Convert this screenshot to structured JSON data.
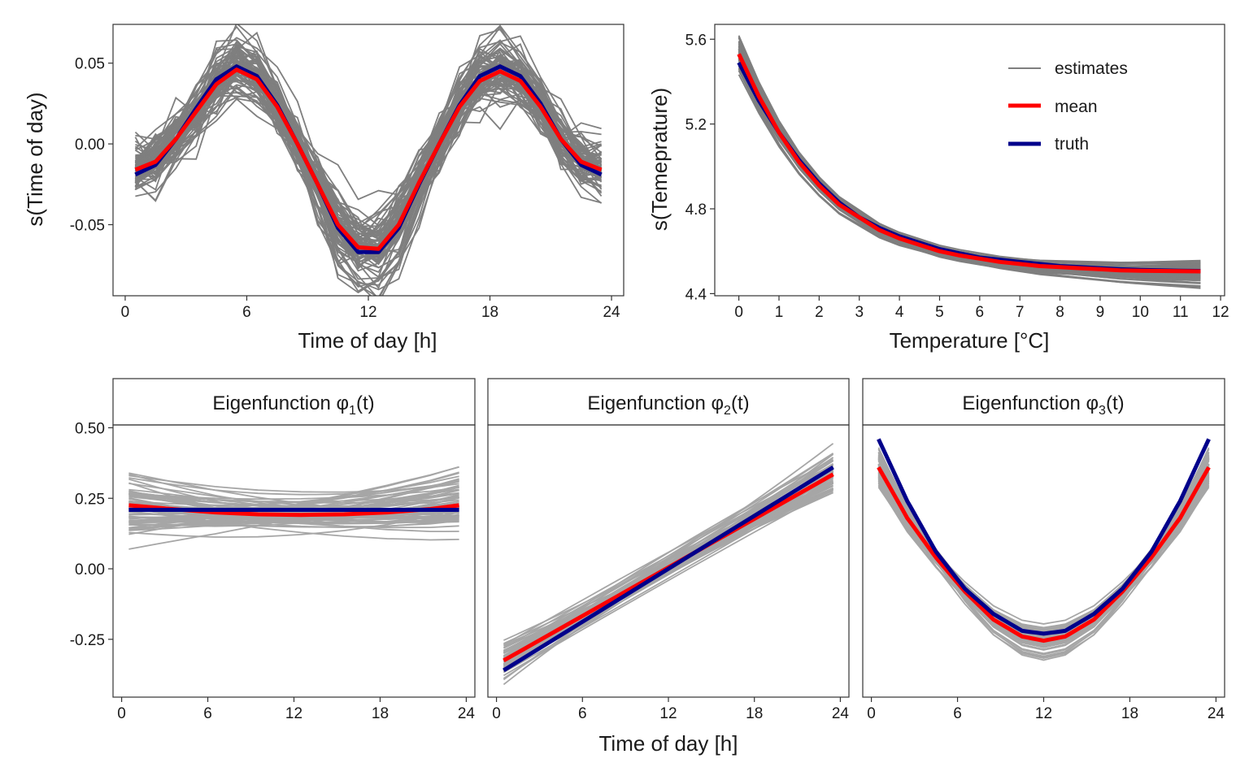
{
  "colors": {
    "estimates": "#7f7f7f",
    "estimates_light": "#a6a6a6",
    "mean": "#ff0000",
    "truth": "#00008b",
    "frame": "#333333",
    "strip_bg": "#ffffff"
  },
  "legend": {
    "items": [
      {
        "label": "estimates",
        "color": "#7f7f7f"
      },
      {
        "label": "mean",
        "color": "#ff0000"
      },
      {
        "label": "truth",
        "color": "#00008b"
      }
    ],
    "position": "top-right of temperature panel"
  },
  "shared_xlabel": "Time of day [h]",
  "chart_data": [
    {
      "id": "time",
      "type": "line",
      "title": "",
      "xlabel": "Time of day [h]",
      "ylabel": "s(Time of day)",
      "xlim": [
        -0.6,
        24.6
      ],
      "ylim": [
        -0.094,
        0.074
      ],
      "xticks": [
        0,
        6,
        12,
        18,
        24
      ],
      "xtick_labels": [
        "0",
        "6",
        "12",
        "18",
        "24"
      ],
      "yticks": [
        -0.05,
        0.0,
        0.05
      ],
      "ytick_labels": [
        "-0.05",
        "0.00",
        "0.05"
      ],
      "x": [
        0.5,
        1.5,
        2.5,
        3.5,
        4.5,
        5.5,
        6.5,
        7.5,
        8.5,
        9.5,
        10.5,
        11.5,
        12.5,
        13.5,
        14.5,
        15.5,
        16.5,
        17.5,
        18.5,
        19.5,
        20.5,
        21.5,
        22.5,
        23.5
      ],
      "series": [
        {
          "name": "truth",
          "values": [
            -0.019,
            -0.013,
            0.003,
            0.022,
            0.04,
            0.048,
            0.042,
            0.024,
            0.0,
            -0.025,
            -0.052,
            -0.067,
            -0.067,
            -0.052,
            -0.025,
            0.0,
            0.024,
            0.042,
            0.048,
            0.042,
            0.025,
            0.003,
            -0.013,
            -0.019
          ]
        },
        {
          "name": "mean",
          "values": [
            -0.016,
            -0.011,
            0.003,
            0.02,
            0.037,
            0.046,
            0.04,
            0.023,
            0.0,
            -0.025,
            -0.05,
            -0.064,
            -0.065,
            -0.05,
            -0.024,
            0.0,
            0.023,
            0.039,
            0.045,
            0.039,
            0.023,
            0.003,
            -0.011,
            -0.016
          ]
        }
      ],
      "estimates_count": 80
    },
    {
      "id": "temperature",
      "type": "line",
      "title": "",
      "xlabel": "Temperature [°C]",
      "ylabel": "s(Temeprature)",
      "xlim": [
        -0.6,
        12.1
      ],
      "ylim": [
        4.39,
        5.67
      ],
      "xticks": [
        0,
        1,
        2,
        3,
        4,
        5,
        6,
        7,
        8,
        9,
        10,
        11,
        12
      ],
      "xtick_labels": [
        "0",
        "1",
        "2",
        "3",
        "4",
        "5",
        "6",
        "7",
        "8",
        "9",
        "10",
        "11",
        "12"
      ],
      "yticks": [
        4.4,
        4.8,
        5.2,
        5.6
      ],
      "ytick_labels": [
        "4.4",
        "4.8",
        "5.2",
        "5.6"
      ],
      "x": [
        0,
        0.5,
        1,
        1.5,
        2,
        2.5,
        3,
        3.5,
        4,
        4.5,
        5,
        5.5,
        6,
        6.5,
        7,
        7.5,
        8,
        8.5,
        9,
        9.5,
        10,
        10.5,
        11,
        11.5
      ],
      "series": [
        {
          "name": "truth",
          "values": [
            5.49,
            5.31,
            5.16,
            5.03,
            4.92,
            4.83,
            4.76,
            4.71,
            4.67,
            4.64,
            4.61,
            4.59,
            4.57,
            4.56,
            4.55,
            4.54,
            4.53,
            4.525,
            4.52,
            4.515,
            4.512,
            4.51,
            4.508,
            4.507
          ]
        },
        {
          "name": "mean",
          "values": [
            5.53,
            5.33,
            5.16,
            5.02,
            4.91,
            4.82,
            4.76,
            4.7,
            4.66,
            4.63,
            4.6,
            4.58,
            4.565,
            4.55,
            4.54,
            4.53,
            4.525,
            4.52,
            4.515,
            4.51,
            4.508,
            4.507,
            4.506,
            4.505
          ]
        }
      ],
      "estimates_count": 80
    },
    {
      "id": "eig1",
      "type": "line",
      "title": "Eigenfunction φ1(t)",
      "strip_parts": {
        "prefix": "Eigenfunction φ",
        "sub": "1",
        "suffix": "(t)"
      },
      "xlabel": "",
      "ylabel": "",
      "xlim": [
        -0.6,
        24.6
      ],
      "ylim": [
        -0.455,
        0.51
      ],
      "xticks": [
        0,
        6,
        12,
        18,
        24
      ],
      "xtick_labels": [
        "0",
        "6",
        "12",
        "18",
        "24"
      ],
      "yticks": [
        -0.25,
        0.0,
        0.25,
        0.5
      ],
      "ytick_labels": [
        "-0.25",
        "0.00",
        "0.25",
        "0.50"
      ],
      "x": [
        0.5,
        3.5,
        6.5,
        9.5,
        12.5,
        15.5,
        18.5,
        21.5,
        23.5
      ],
      "series": [
        {
          "name": "truth",
          "values": [
            0.209,
            0.209,
            0.209,
            0.209,
            0.209,
            0.209,
            0.209,
            0.209,
            0.209
          ]
        },
        {
          "name": "mean",
          "values": [
            0.225,
            0.212,
            0.2,
            0.193,
            0.191,
            0.193,
            0.2,
            0.212,
            0.225
          ]
        }
      ],
      "estimates_count": 70
    },
    {
      "id": "eig2",
      "type": "line",
      "title": "Eigenfunction φ2(t)",
      "strip_parts": {
        "prefix": "Eigenfunction φ",
        "sub": "2",
        "suffix": "(t)"
      },
      "xlabel": "Time of day [h]",
      "ylabel": "",
      "xlim": [
        -0.6,
        24.6
      ],
      "ylim": [
        -0.455,
        0.51
      ],
      "xticks": [
        0,
        6,
        12,
        18,
        24
      ],
      "xtick_labels": [
        "0",
        "6",
        "12",
        "18",
        "24"
      ],
      "yticks": [
        -0.25,
        0.0,
        0.25,
        0.5
      ],
      "ytick_labels": [
        "-0.25",
        "0.00",
        "0.25",
        "0.50"
      ],
      "x": [
        0.5,
        23.5
      ],
      "series": [
        {
          "name": "truth",
          "values": [
            -0.36,
            0.36
          ]
        },
        {
          "name": "mean",
          "values": [
            -0.325,
            0.335
          ]
        }
      ],
      "estimates_count": 70
    },
    {
      "id": "eig3",
      "type": "line",
      "title": "Eigenfunction φ3(t)",
      "strip_parts": {
        "prefix": "Eigenfunction φ",
        "sub": "3",
        "suffix": "(t)"
      },
      "xlabel": "",
      "ylabel": "",
      "xlim": [
        -0.6,
        24.6
      ],
      "ylim": [
        -0.455,
        0.51
      ],
      "xticks": [
        0,
        6,
        12,
        18,
        24
      ],
      "xtick_labels": [
        "0",
        "6",
        "12",
        "18",
        "24"
      ],
      "yticks": [
        -0.25,
        0.0,
        0.25,
        0.5
      ],
      "ytick_labels": [
        "-0.25",
        "0.00",
        "0.25",
        "0.50"
      ],
      "x": [
        0.5,
        2.5,
        4.5,
        6.5,
        8.5,
        10.5,
        12.0,
        13.5,
        15.5,
        17.5,
        19.5,
        21.5,
        23.5
      ],
      "series": [
        {
          "name": "truth",
          "values": [
            0.46,
            0.24,
            0.06,
            -0.07,
            -0.16,
            -0.22,
            -0.23,
            -0.22,
            -0.16,
            -0.07,
            0.06,
            0.24,
            0.46
          ]
        },
        {
          "name": "mean",
          "values": [
            0.36,
            0.18,
            0.04,
            -0.08,
            -0.18,
            -0.24,
            -0.255,
            -0.24,
            -0.18,
            -0.08,
            0.04,
            0.18,
            0.36
          ]
        }
      ],
      "estimates_count": 70
    }
  ]
}
